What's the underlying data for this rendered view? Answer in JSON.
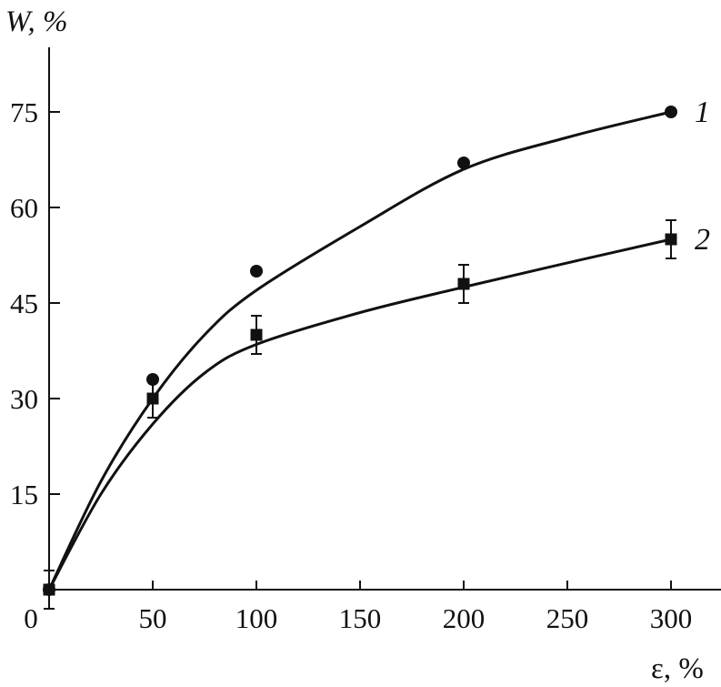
{
  "chart_data": {
    "type": "scatter",
    "xlabel": "ε, %",
    "ylabel": "W, %",
    "xlim": [
      0,
      325
    ],
    "ylim": [
      -1,
      85
    ],
    "x_ticks": [
      0,
      50,
      100,
      150,
      200,
      250,
      300
    ],
    "x_tick_labels": [
      "0",
      "50",
      "100",
      "150",
      "200",
      "250",
      "300"
    ],
    "y_ticks": [
      15,
      30,
      45,
      60,
      75
    ],
    "y_tick_labels": [
      "15",
      "30",
      "45",
      "60",
      "75"
    ],
    "grid": false,
    "legend": "none",
    "series": [
      {
        "name": "1",
        "marker": "circle",
        "x": [
          0,
          50,
          100,
          200,
          300
        ],
        "y": [
          0,
          33,
          50,
          67,
          75
        ],
        "fit_curve": [
          [
            0,
            0
          ],
          [
            25,
            17
          ],
          [
            50,
            30
          ],
          [
            75,
            40
          ],
          [
            100,
            47
          ],
          [
            150,
            57
          ],
          [
            200,
            66
          ],
          [
            250,
            71
          ],
          [
            300,
            75
          ]
        ]
      },
      {
        "name": "2",
        "marker": "square",
        "x": [
          0,
          50,
          100,
          200,
          300
        ],
        "y": [
          0,
          30,
          40,
          48,
          55
        ],
        "error": [
          3,
          3,
          3,
          3,
          3
        ],
        "fit_curve": [
          [
            0,
            0
          ],
          [
            25,
            15
          ],
          [
            50,
            26
          ],
          [
            75,
            34
          ],
          [
            100,
            38.5
          ],
          [
            150,
            43.5
          ],
          [
            200,
            47.5
          ],
          [
            250,
            51.3
          ],
          [
            300,
            55
          ]
        ]
      }
    ]
  }
}
